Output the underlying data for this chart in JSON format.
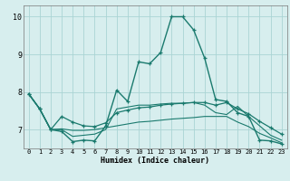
{
  "background_color": "#d7eeee",
  "grid_color": "#aad4d4",
  "line_color": "#1a7a6e",
  "xlabel": "Humidex (Indice chaleur)",
  "xlim": [
    -0.5,
    23.5
  ],
  "ylim": [
    6.5,
    10.3
  ],
  "yticks": [
    7,
    8,
    9,
    10
  ],
  "xticks": [
    0,
    1,
    2,
    3,
    4,
    5,
    6,
    7,
    8,
    9,
    10,
    11,
    12,
    13,
    14,
    15,
    16,
    17,
    18,
    19,
    20,
    21,
    22,
    23
  ],
  "series": [
    {
      "x": [
        0,
        1,
        2,
        3,
        4,
        5,
        6,
        7,
        8,
        9,
        10,
        11,
        12,
        13,
        14,
        15,
        16,
        17,
        18,
        19,
        20,
        21,
        22,
        23
      ],
      "y": [
        7.95,
        7.55,
        7.0,
        6.95,
        6.68,
        6.72,
        6.7,
        7.1,
        8.05,
        7.75,
        8.8,
        8.75,
        9.05,
        10.0,
        10.0,
        9.65,
        8.9,
        7.8,
        7.75,
        7.45,
        7.35,
        6.72,
        6.7,
        6.62
      ],
      "marker": true,
      "lw": 1.0
    },
    {
      "x": [
        0,
        1,
        2,
        3,
        4,
        5,
        6,
        7,
        8,
        9,
        10,
        11,
        12,
        13,
        14,
        15,
        16,
        17,
        18,
        19,
        20,
        21,
        22,
        23
      ],
      "y": [
        7.95,
        7.55,
        7.0,
        7.35,
        7.2,
        7.1,
        7.08,
        7.18,
        7.45,
        7.52,
        7.58,
        7.6,
        7.65,
        7.68,
        7.7,
        7.72,
        7.72,
        7.65,
        7.72,
        7.55,
        7.42,
        7.22,
        7.05,
        6.88
      ],
      "marker": true,
      "lw": 0.9
    },
    {
      "x": [
        0,
        1,
        2,
        3,
        4,
        5,
        6,
        7,
        8,
        9,
        10,
        11,
        12,
        13,
        14,
        15,
        16,
        17,
        18,
        19,
        20,
        21,
        22,
        23
      ],
      "y": [
        7.95,
        7.55,
        7.0,
        7.02,
        6.98,
        6.98,
        7.0,
        7.05,
        7.1,
        7.15,
        7.2,
        7.22,
        7.25,
        7.28,
        7.3,
        7.32,
        7.35,
        7.35,
        7.35,
        7.2,
        7.08,
        6.9,
        6.78,
        6.65
      ],
      "marker": false,
      "lw": 0.8
    },
    {
      "x": [
        0,
        1,
        2,
        3,
        4,
        5,
        6,
        7,
        8,
        9,
        10,
        11,
        12,
        13,
        14,
        15,
        16,
        17,
        18,
        19,
        20,
        21,
        22,
        23
      ],
      "y": [
        7.95,
        7.55,
        7.0,
        7.0,
        6.82,
        6.85,
        6.88,
        7.0,
        7.55,
        7.6,
        7.65,
        7.65,
        7.68,
        7.7,
        7.7,
        7.72,
        7.65,
        7.45,
        7.4,
        7.62,
        7.35,
        7.1,
        6.85,
        6.72
      ],
      "marker": false,
      "lw": 0.8
    }
  ]
}
